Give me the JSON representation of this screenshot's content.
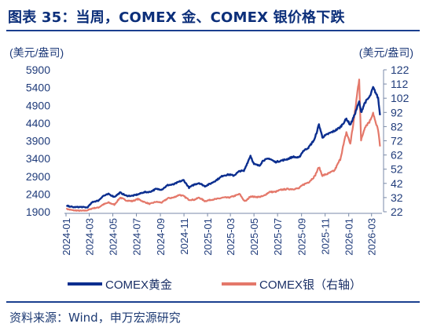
{
  "header": {
    "title": "图表 35：当周，COMEX 金、COMEX 银价格下跌"
  },
  "footer": {
    "source": "资料来源：Wind，申万宏源研究"
  },
  "colors": {
    "gold": "#0b2e8f",
    "silver": "#e4786a",
    "title": "#0c2f7a",
    "axis_text": "#1f3b7a"
  },
  "chart_data": {
    "type": "line",
    "left_axis": {
      "unit": "(美元/盎司)",
      "ticks": [
        1900,
        2400,
        2900,
        3400,
        3900,
        4400,
        4900,
        5400,
        5900
      ],
      "range": [
        1900,
        5900
      ]
    },
    "right_axis": {
      "unit": "(美元/盎司)",
      "ticks": [
        22,
        32,
        42,
        52,
        62,
        72,
        82,
        92,
        102,
        112,
        122
      ],
      "range": [
        22,
        122
      ]
    },
    "x_ticks": [
      "2024-01",
      "2024-03",
      "2024-05",
      "2024-07",
      "2024-09",
      "2024-11",
      "2025-01",
      "2025-03",
      "2025-05",
      "2025-07",
      "2025-09",
      "2025-11",
      "2026-01",
      "2026-03"
    ],
    "legend_position": "bottom",
    "series": [
      {
        "name": "COMEX黄金",
        "axis": "left",
        "points": [
          [
            "2024-01-02",
            2070
          ],
          [
            "2024-01-20",
            2030
          ],
          [
            "2024-02-10",
            2035
          ],
          [
            "2024-02-25",
            2020
          ],
          [
            "2024-03-10",
            2180
          ],
          [
            "2024-03-25",
            2215
          ],
          [
            "2024-04-05",
            2340
          ],
          [
            "2024-04-20",
            2400
          ],
          [
            "2024-05-05",
            2320
          ],
          [
            "2024-05-20",
            2440
          ],
          [
            "2024-06-05",
            2350
          ],
          [
            "2024-06-20",
            2350
          ],
          [
            "2024-07-05",
            2390
          ],
          [
            "2024-07-20",
            2450
          ],
          [
            "2024-08-05",
            2460
          ],
          [
            "2024-08-20",
            2540
          ],
          [
            "2024-09-05",
            2530
          ],
          [
            "2024-09-20",
            2650
          ],
          [
            "2024-10-05",
            2670
          ],
          [
            "2024-10-20",
            2750
          ],
          [
            "2024-10-31",
            2790
          ],
          [
            "2024-11-14",
            2580
          ],
          [
            "2024-11-28",
            2670
          ],
          [
            "2024-12-10",
            2710
          ],
          [
            "2024-12-25",
            2620
          ],
          [
            "2025-01-10",
            2700
          ],
          [
            "2025-01-25",
            2800
          ],
          [
            "2025-02-10",
            2920
          ],
          [
            "2025-02-25",
            2950
          ],
          [
            "2025-03-10",
            2920
          ],
          [
            "2025-03-25",
            3050
          ],
          [
            "2025-04-05",
            3050
          ],
          [
            "2025-04-10",
            3180
          ],
          [
            "2025-04-22",
            3480
          ],
          [
            "2025-05-01",
            3240
          ],
          [
            "2025-05-15",
            3200
          ],
          [
            "2025-05-25",
            3350
          ],
          [
            "2025-06-10",
            3400
          ],
          [
            "2025-06-25",
            3300
          ],
          [
            "2025-07-10",
            3340
          ],
          [
            "2025-07-25",
            3380
          ],
          [
            "2025-08-10",
            3450
          ],
          [
            "2025-08-25",
            3420
          ],
          [
            "2025-09-05",
            3610
          ],
          [
            "2025-09-20",
            3720
          ],
          [
            "2025-10-05",
            3950
          ],
          [
            "2025-10-16",
            4360
          ],
          [
            "2025-10-25",
            4000
          ],
          [
            "2025-11-10",
            4100
          ],
          [
            "2025-11-25",
            4180
          ],
          [
            "2025-12-10",
            4280
          ],
          [
            "2025-12-26",
            4520
          ],
          [
            "2026-01-05",
            4350
          ],
          [
            "2026-01-15",
            4600
          ],
          [
            "2026-01-28",
            5000
          ],
          [
            "2026-02-02",
            4700
          ],
          [
            "2026-02-12",
            4980
          ],
          [
            "2026-02-25",
            5150
          ],
          [
            "2026-03-05",
            5400
          ],
          [
            "2026-03-12",
            5250
          ],
          [
            "2026-03-18",
            5100
          ],
          [
            "2026-03-23",
            4620
          ]
        ]
      },
      {
        "name": "COMEX银（右轴）",
        "axis": "right",
        "points": [
          [
            "2024-01-02",
            24
          ],
          [
            "2024-01-20",
            23
          ],
          [
            "2024-02-10",
            22.7
          ],
          [
            "2024-02-25",
            23
          ],
          [
            "2024-03-10",
            24.5
          ],
          [
            "2024-03-25",
            25
          ],
          [
            "2024-04-05",
            27
          ],
          [
            "2024-04-20",
            28.5
          ],
          [
            "2024-05-05",
            27
          ],
          [
            "2024-05-20",
            32
          ],
          [
            "2024-06-05",
            30
          ],
          [
            "2024-06-20",
            29.5
          ],
          [
            "2024-07-05",
            31
          ],
          [
            "2024-07-20",
            29
          ],
          [
            "2024-08-05",
            27.5
          ],
          [
            "2024-08-20",
            29
          ],
          [
            "2024-09-05",
            28.5
          ],
          [
            "2024-09-20",
            31.5
          ],
          [
            "2024-10-05",
            32
          ],
          [
            "2024-10-20",
            34
          ],
          [
            "2024-10-31",
            33
          ],
          [
            "2024-11-14",
            30.5
          ],
          [
            "2024-11-28",
            30.5
          ],
          [
            "2024-12-10",
            32
          ],
          [
            "2024-12-25",
            29.5
          ],
          [
            "2025-01-10",
            30.5
          ],
          [
            "2025-01-25",
            31
          ],
          [
            "2025-02-10",
            32
          ],
          [
            "2025-02-25",
            32
          ],
          [
            "2025-03-10",
            33
          ],
          [
            "2025-03-25",
            34.5
          ],
          [
            "2025-04-05",
            30
          ],
          [
            "2025-04-10",
            29.5
          ],
          [
            "2025-04-22",
            33
          ],
          [
            "2025-05-01",
            32.5
          ],
          [
            "2025-05-15",
            32.5
          ],
          [
            "2025-05-25",
            33
          ],
          [
            "2025-06-10",
            36
          ],
          [
            "2025-06-25",
            36
          ],
          [
            "2025-07-10",
            37.5
          ],
          [
            "2025-07-25",
            38
          ],
          [
            "2025-08-10",
            38
          ],
          [
            "2025-08-25",
            38.5
          ],
          [
            "2025-09-05",
            41
          ],
          [
            "2025-09-20",
            43
          ],
          [
            "2025-10-05",
            47
          ],
          [
            "2025-10-16",
            53.5
          ],
          [
            "2025-10-25",
            47.5
          ],
          [
            "2025-11-10",
            49
          ],
          [
            "2025-11-25",
            51
          ],
          [
            "2025-12-10",
            59
          ],
          [
            "2025-12-26",
            78
          ],
          [
            "2026-01-05",
            70
          ],
          [
            "2026-01-15",
            88
          ],
          [
            "2026-01-28",
            116
          ],
          [
            "2026-02-02",
            72
          ],
          [
            "2026-02-12",
            82
          ],
          [
            "2026-02-25",
            86
          ],
          [
            "2026-03-05",
            92
          ],
          [
            "2026-03-12",
            84
          ],
          [
            "2026-03-18",
            80
          ],
          [
            "2026-03-23",
            68
          ]
        ]
      }
    ]
  }
}
